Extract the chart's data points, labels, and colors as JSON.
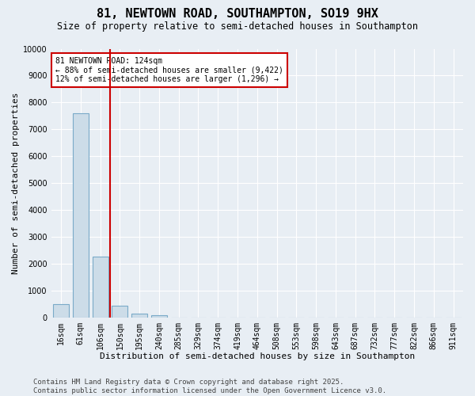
{
  "title1": "81, NEWTOWN ROAD, SOUTHAMPTON, SO19 9HX",
  "title2": "Size of property relative to semi-detached houses in Southampton",
  "xlabel": "Distribution of semi-detached houses by size in Southampton",
  "ylabel": "Number of semi-detached properties",
  "categories": [
    "16sqm",
    "61sqm",
    "106sqm",
    "150sqm",
    "195sqm",
    "240sqm",
    "285sqm",
    "329sqm",
    "374sqm",
    "419sqm",
    "464sqm",
    "508sqm",
    "553sqm",
    "598sqm",
    "643sqm",
    "687sqm",
    "732sqm",
    "777sqm",
    "822sqm",
    "866sqm",
    "911sqm"
  ],
  "values": [
    480,
    7600,
    2250,
    430,
    130,
    70,
    0,
    0,
    0,
    0,
    0,
    0,
    0,
    0,
    0,
    0,
    0,
    0,
    0,
    0,
    0
  ],
  "bar_color": "#ccdce8",
  "bar_edge_color": "#7aaac8",
  "vline_x": 2.5,
  "vline_color": "#cc0000",
  "annotation_text": "81 NEWTOWN ROAD: 124sqm\n← 88% of semi-detached houses are smaller (9,422)\n12% of semi-detached houses are larger (1,296) →",
  "annotation_box_color": "#ffffff",
  "annotation_box_edge": "#cc0000",
  "ylim": [
    0,
    10000
  ],
  "yticks": [
    0,
    1000,
    2000,
    3000,
    4000,
    5000,
    6000,
    7000,
    8000,
    9000,
    10000
  ],
  "bg_color": "#e8eef4",
  "plot_bg_color": "#e8eef4",
  "footer": "Contains HM Land Registry data © Crown copyright and database right 2025.\nContains public sector information licensed under the Open Government Licence v3.0.",
  "title1_fontsize": 11,
  "title2_fontsize": 8.5,
  "xlabel_fontsize": 8,
  "ylabel_fontsize": 8,
  "tick_fontsize": 7,
  "footer_fontsize": 6.5,
  "annotation_fontsize": 7
}
